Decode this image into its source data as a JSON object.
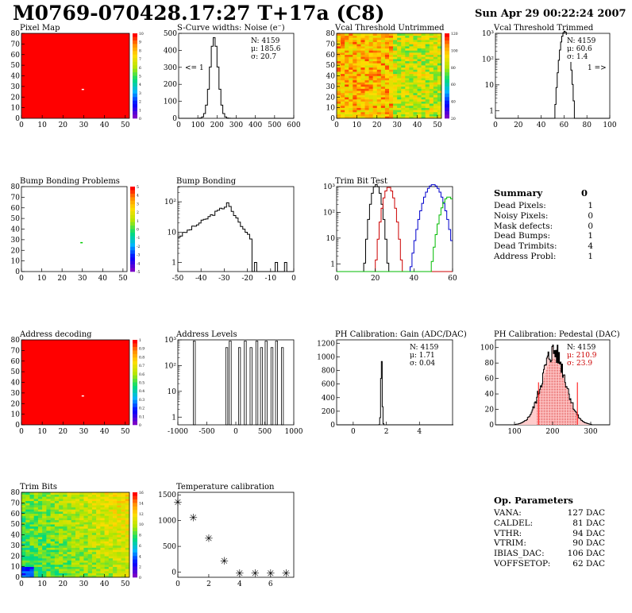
{
  "header": {
    "title": "M0769-070428.17:27 T+17a (C8)",
    "date": "Sun Apr 29 00:22:24 2007"
  },
  "colors": {
    "red": "#ff0000",
    "black": "#000000",
    "blue": "#0000cc",
    "green": "#00bb00",
    "darkred": "#cc0000"
  },
  "chart_data": [
    {
      "id": "pixelmap",
      "type": "heatmap",
      "title": "Pixel Map",
      "xlim": [
        0,
        52
      ],
      "ylim": [
        0,
        80
      ],
      "xticks": [
        0,
        10,
        20,
        30,
        40,
        50
      ],
      "yticks": [
        0,
        10,
        20,
        30,
        40,
        50,
        60,
        70,
        80
      ],
      "fill": "red",
      "spot": {
        "x": 29,
        "y": 27
      },
      "colorbar": {
        "labels": [
          "10",
          "9",
          "8",
          "7",
          "6",
          "5",
          "4",
          "3",
          "2",
          "1",
          "0"
        ]
      }
    },
    {
      "id": "scurve",
      "type": "bar",
      "title": "S-Curve widths: Noise (e⁻)",
      "xlim": [
        0,
        600
      ],
      "ylim": [
        0,
        500
      ],
      "xticks": [
        0,
        100,
        200,
        300,
        400,
        500,
        600
      ],
      "yticks": [
        0,
        100,
        200,
        300,
        400,
        500
      ],
      "stats": [
        "N: 4159",
        "μ: 185.6",
        "σ: 20.7"
      ],
      "annotation": "<= 1",
      "peak": {
        "mean": 185,
        "sigma": 21,
        "height": 475
      }
    },
    {
      "id": "vcalu",
      "type": "heatmap",
      "title": "Vcal Threshold Untrimmed",
      "xlim": [
        0,
        52
      ],
      "ylim": [
        0,
        80
      ],
      "xticks": [
        0,
        10,
        20,
        30,
        40,
        50
      ],
      "yticks": [
        0,
        10,
        20,
        30,
        40,
        50,
        60,
        70,
        80
      ],
      "colorbar": {
        "labels": [
          "120",
          "100",
          "80",
          "60",
          "40",
          "20"
        ]
      }
    },
    {
      "id": "vcalt",
      "type": "bar",
      "title": "Vcal Threshold Trimmed",
      "xlim": [
        0,
        100
      ],
      "ylog": true,
      "xticks": [
        0,
        20,
        40,
        60,
        80,
        100
      ],
      "ylabels": [
        "1",
        "10",
        "10²",
        "10³"
      ],
      "stats": [
        "N: 4159",
        "μ: 60.6",
        "σ:  1.4"
      ],
      "annotation": "1 =>",
      "peak": {
        "mean": 60.6,
        "sigma": 1.4,
        "height": 1200
      }
    },
    {
      "id": "bump",
      "type": "heatmap",
      "title": "Bump Bonding Problems",
      "xlim": [
        0,
        52
      ],
      "ylim": [
        0,
        80
      ],
      "xticks": [
        0,
        10,
        20,
        30,
        40,
        50
      ],
      "yticks": [
        0,
        10,
        20,
        30,
        40,
        50,
        60,
        70,
        80
      ],
      "fill": "white",
      "spot": {
        "x": 29,
        "y": 27
      },
      "colorbar": {
        "labels": [
          "5",
          "4",
          "3",
          "2",
          "1",
          "0",
          "-1",
          "-2",
          "-3",
          "-4",
          "-5"
        ]
      }
    },
    {
      "id": "bb",
      "type": "bar",
      "title": "Bump Bonding",
      "xlim": [
        -50,
        0
      ],
      "ylog": true,
      "xticks": [
        -50,
        -40,
        -30,
        -20,
        -10,
        0
      ],
      "ylabels": [
        "1",
        "10",
        "10²"
      ]
    },
    {
      "id": "trimbit",
      "type": "bar",
      "title": "Trim Bit Test",
      "xlim": [
        0,
        60
      ],
      "ylog": true,
      "xticks": [
        0,
        20,
        40,
        60
      ],
      "ylabels": [
        "1",
        "10",
        "10²",
        "10³"
      ],
      "series": [
        {
          "color": "black",
          "mean": 20.5,
          "sigma": 1.6
        },
        {
          "color": "darkred",
          "mean": 27,
          "sigma": 1.8
        },
        {
          "color": "blue",
          "mean": 50,
          "sigma": 3
        },
        {
          "color": "green",
          "mean": 58,
          "sigma": 2.5
        }
      ]
    },
    {
      "id": "addr",
      "type": "heatmap",
      "title": "Address decoding",
      "xlim": [
        0,
        52
      ],
      "ylim": [
        0,
        80
      ],
      "xticks": [
        0,
        10,
        20,
        30,
        40,
        50
      ],
      "yticks": [
        0,
        10,
        20,
        30,
        40,
        50,
        60,
        70,
        80
      ],
      "fill": "red",
      "spot": {
        "x": 29,
        "y": 27
      },
      "colorbar": {
        "labels": [
          "1",
          "0.9",
          "0.8",
          "0.7",
          "0.6",
          "0.5",
          "0.4",
          "0.3",
          "0.2",
          "0.1",
          "0"
        ]
      }
    },
    {
      "id": "addrlev",
      "type": "bar",
      "title": "Address Levels",
      "xlim": [
        -1000,
        1000
      ],
      "ylog": true,
      "xticks": [
        -1000,
        -500,
        0,
        500,
        1000
      ],
      "ylabels": [
        "1",
        "10",
        "10²",
        "10³"
      ],
      "lines": [
        -720,
        -160,
        -100,
        60,
        160,
        260,
        360,
        440,
        520,
        620,
        700,
        800
      ]
    },
    {
      "id": "gain",
      "type": "bar",
      "title": "PH Calibration: Gain (ADC/DAC)",
      "xlim": [
        -1,
        6
      ],
      "ylim": [
        0,
        1250
      ],
      "xticks": [
        0,
        2,
        4
      ],
      "yticks": [
        0,
        200,
        400,
        600,
        800,
        1000,
        1200
      ],
      "stats": [
        "N: 4159",
        "μ: 1.71",
        "σ: 0.04"
      ],
      "peak": {
        "mean": 1.71,
        "sigma": 0.04,
        "height": 1000
      }
    },
    {
      "id": "ped",
      "type": "bar",
      "title": "PH Calibration: Pedestal (DAC)",
      "xlim": [
        50,
        350
      ],
      "ylim": [
        0,
        110
      ],
      "xticks": [
        100,
        200,
        300
      ],
      "yticks": [
        0,
        20,
        40,
        60,
        80,
        100
      ],
      "stats": [
        "N: 4159",
        "μ: 210.9",
        "σ: 23.9"
      ],
      "peak": {
        "mean": 210.9,
        "sigma": 23.9,
        "height": 95
      }
    },
    {
      "id": "trimbits",
      "type": "heatmap",
      "title": "Trim Bits",
      "xlim": [
        0,
        52
      ],
      "ylim": [
        0,
        80
      ],
      "xticks": [
        0,
        10,
        20,
        30,
        40,
        50
      ],
      "yticks": [
        0,
        10,
        20,
        30,
        40,
        50,
        60,
        70,
        80
      ],
      "colorbar": {
        "labels": [
          "16",
          "14",
          "12",
          "10",
          "8",
          "6",
          "4",
          "2",
          "0"
        ]
      }
    },
    {
      "id": "temp",
      "type": "scatter",
      "title": "Temperature calibration",
      "xlim": [
        0,
        7.5
      ],
      "ylim": [
        -100,
        1550
      ],
      "xticks": [
        0,
        2,
        4,
        6
      ],
      "yticks": [
        0,
        500,
        1000,
        1500
      ],
      "points": [
        [
          0,
          1380
        ],
        [
          1,
          1080
        ],
        [
          2,
          680
        ],
        [
          3,
          240
        ],
        [
          4,
          0
        ],
        [
          5,
          0
        ],
        [
          6,
          0
        ],
        [
          7,
          0
        ]
      ]
    }
  ],
  "summary": {
    "title": "Summary",
    "total": "0",
    "rows": [
      {
        "label": "Dead Pixels:",
        "value": "1"
      },
      {
        "label": "Noisy Pixels:",
        "value": "0"
      },
      {
        "label": "Mask defects:",
        "value": "0"
      },
      {
        "label": "Dead Bumps:",
        "value": "1"
      },
      {
        "label": "Dead Trimbits:",
        "value": "4"
      },
      {
        "label": "Address Probl:",
        "value": "1"
      }
    ]
  },
  "params": {
    "title": "Op. Parameters",
    "rows": [
      {
        "label": "VANA:",
        "value": "127 DAC"
      },
      {
        "label": "CALDEL:",
        "value": "81 DAC"
      },
      {
        "label": "VTHR:",
        "value": "94 DAC"
      },
      {
        "label": "VTRIM:",
        "value": "90 DAC"
      },
      {
        "label": "IBIAS_DAC:",
        "value": "106 DAC"
      },
      {
        "label": "VOFFSETOP:",
        "value": "62 DAC"
      }
    ]
  }
}
